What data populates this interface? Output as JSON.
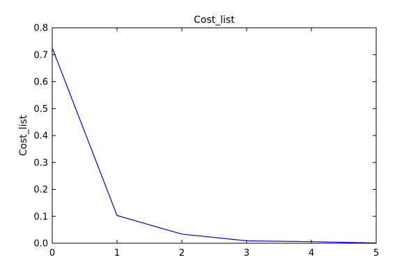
{
  "chart_data": {
    "type": "line",
    "title": "Cost_list",
    "xlabel": "",
    "ylabel": "Cost_list",
    "x": [
      0,
      1,
      2,
      3,
      4,
      5
    ],
    "series": [
      {
        "values": [
          0.725,
          0.103,
          0.034,
          0.009,
          0.006,
          0.001
        ],
        "color": "#0000ff"
      }
    ],
    "xlim": [
      0,
      5
    ],
    "ylim": [
      0,
      0.8
    ],
    "xticks": [
      0,
      1,
      2,
      3,
      4,
      5
    ],
    "yticks": [
      0.0,
      0.1,
      0.2,
      0.3,
      0.4,
      0.5,
      0.6,
      0.7,
      0.8
    ],
    "xtick_labels": [
      "0",
      "1",
      "2",
      "3",
      "4",
      "5"
    ],
    "ytick_labels": [
      "0.0",
      "0.1",
      "0.2",
      "0.3",
      "0.4",
      "0.5",
      "0.6",
      "0.7",
      "0.8"
    ],
    "grid": false,
    "legend": "none"
  }
}
